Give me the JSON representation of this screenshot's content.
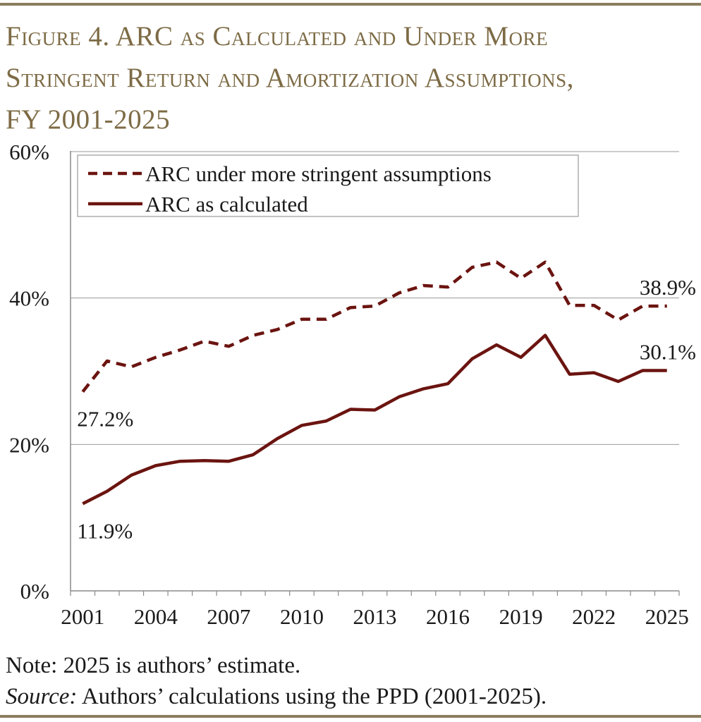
{
  "header": {
    "title_lines": [
      "Figure 4. ARC as Calculated and Under More",
      "Stringent Return and Amortization Assumptions,",
      "FY 2001-2025"
    ]
  },
  "footer": {
    "note": "Note: 2025 is authors’ estimate.",
    "source_label": "Source:",
    "source_text": " Authors’ calculations using the PPD (2001-2025)."
  },
  "chart_data": {
    "type": "line",
    "title": "Figure 4. ARC as Calculated and Under More Stringent Return and Amortization Assumptions, FY 2001-2025",
    "xlabel": "",
    "ylabel": "",
    "ylim": [
      0,
      60
    ],
    "yticks": [
      0,
      20,
      40,
      60
    ],
    "ytick_labels": [
      "0%",
      "20%",
      "40%",
      "60%"
    ],
    "xtick_labels": [
      "2001",
      "2004",
      "2007",
      "2010",
      "2013",
      "2016",
      "2019",
      "2022",
      "2025"
    ],
    "grid": true,
    "legend_position": "top-left",
    "x": [
      2001,
      2002,
      2003,
      2004,
      2005,
      2006,
      2007,
      2008,
      2009,
      2010,
      2011,
      2012,
      2013,
      2014,
      2015,
      2016,
      2017,
      2018,
      2019,
      2020,
      2021,
      2022,
      2023,
      2024,
      2025
    ],
    "series": [
      {
        "name": "ARC under more stringent assumptions",
        "style": "dashed",
        "color": "#6b1410",
        "values": [
          27.2,
          31.4,
          30.6,
          31.9,
          32.9,
          34.1,
          33.4,
          34.9,
          35.7,
          37.1,
          37.1,
          38.7,
          38.9,
          40.7,
          41.7,
          41.5,
          44.2,
          44.9,
          42.7,
          44.9,
          39.0,
          39.0,
          37.0,
          38.9,
          38.9
        ]
      },
      {
        "name": "ARC as calculated",
        "style": "solid",
        "color": "#6b1410",
        "values": [
          11.9,
          13.6,
          15.8,
          17.1,
          17.7,
          17.8,
          17.7,
          18.6,
          20.8,
          22.6,
          23.2,
          24.8,
          24.7,
          26.5,
          27.6,
          28.3,
          31.7,
          33.6,
          31.9,
          34.9,
          29.6,
          29.8,
          28.6,
          30.1,
          30.1
        ]
      }
    ],
    "annotations": [
      {
        "text": "27.2%",
        "series": 0,
        "year": 2001
      },
      {
        "text": "11.9%",
        "series": 1,
        "year": 2001
      },
      {
        "text": "38.9%",
        "series": 0,
        "year": 2025
      },
      {
        "text": "30.1%",
        "series": 1,
        "year": 2025
      }
    ]
  }
}
